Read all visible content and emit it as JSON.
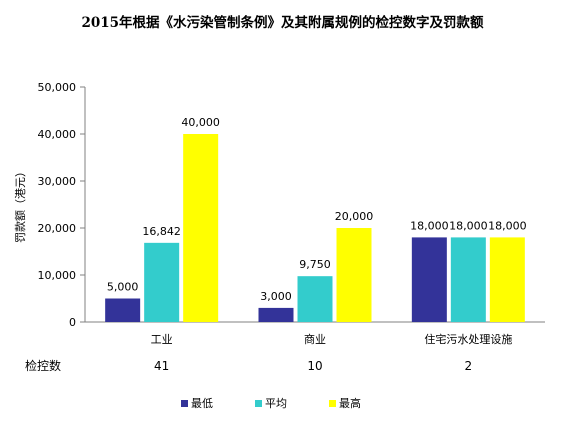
{
  "chart_data": {
    "type": "bar",
    "title": "2015年根据《水污染管制条例》及其附属规例的检控数字及罚款额",
    "ylabel": "罚款额（港元）",
    "xlabel": "",
    "ylim": [
      0,
      50000
    ],
    "yticks": [
      0,
      10000,
      20000,
      30000,
      40000,
      50000
    ],
    "grid": false,
    "legend_position": "bottom",
    "categories": [
      "工业",
      "商业",
      "住宅污水处理设施"
    ],
    "series": [
      {
        "name": "最低",
        "color": "#333399",
        "values": [
          5000,
          3000,
          18000
        ]
      },
      {
        "name": "平均",
        "color": "#33CCCC",
        "values": [
          16842,
          9750,
          18000
        ]
      },
      {
        "name": "最高",
        "color": "#FFFF00",
        "values": [
          40000,
          20000,
          18000
        ]
      }
    ],
    "prosecutions": {
      "label": "检控数",
      "values": [
        "41",
        "10",
        "2"
      ]
    }
  }
}
